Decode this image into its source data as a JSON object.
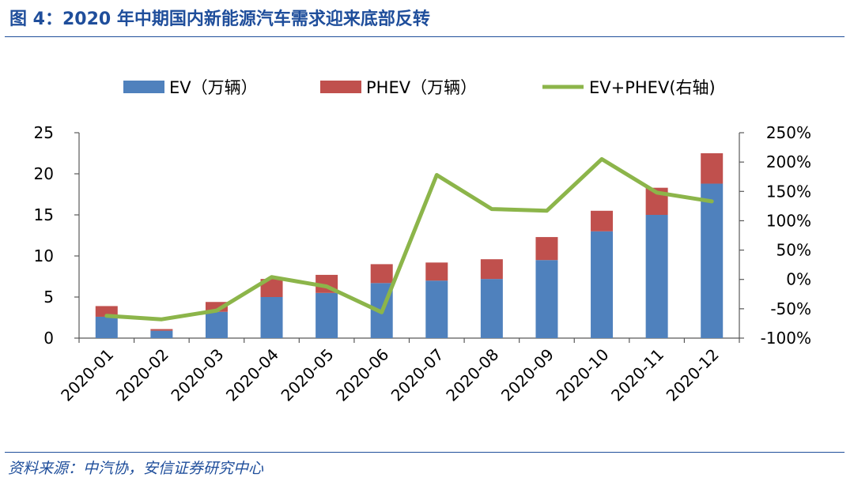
{
  "figure": {
    "title": "图 4：2020 年中期国内新能源汽车需求迎来底部反转",
    "source": "资料来源：中汽协，安信证券研究中心"
  },
  "colors": {
    "ev": "#4f81bd",
    "phev": "#c0504d",
    "line": "#8cb54a",
    "accent": "#1f4e9b",
    "axis": "#595959"
  },
  "chart_data": {
    "type": "bar",
    "stacked": true,
    "categories": [
      "2020-01",
      "2020-02",
      "2020-03",
      "2020-04",
      "2020-05",
      "2020-06",
      "2020-07",
      "2020-08",
      "2020-09",
      "2020-10",
      "2020-11",
      "2020-12"
    ],
    "series": [
      {
        "name": "EV（万辆）",
        "type": "bar",
        "axis": "left",
        "values": [
          2.6,
          0.9,
          3.2,
          5.0,
          5.5,
          6.7,
          7.0,
          7.2,
          9.5,
          13.0,
          15.0,
          18.8
        ]
      },
      {
        "name": "PHEV（万辆）",
        "type": "bar",
        "axis": "left",
        "values": [
          1.3,
          0.2,
          1.2,
          2.2,
          2.2,
          2.3,
          2.2,
          2.4,
          2.8,
          2.5,
          3.3,
          3.7
        ]
      },
      {
        "name": "EV+PHEV(右轴)",
        "type": "line",
        "axis": "right",
        "values": [
          -0.62,
          -0.68,
          -0.53,
          0.04,
          -0.12,
          -0.56,
          1.78,
          1.2,
          1.17,
          2.05,
          1.48,
          1.33
        ]
      }
    ],
    "y_left": {
      "min": 0,
      "max": 25,
      "ticks": [
        0,
        5,
        10,
        15,
        20,
        25
      ]
    },
    "y_right": {
      "min": -1.0,
      "max": 2.5,
      "ticks": [
        -1.0,
        -0.5,
        0,
        0.5,
        1.0,
        1.5,
        2.0,
        2.5
      ],
      "tick_labels": [
        "-100%",
        "-50%",
        "0%",
        "50%",
        "100%",
        "150%",
        "200%",
        "250%"
      ]
    },
    "legend_position": "top",
    "grid": false
  }
}
